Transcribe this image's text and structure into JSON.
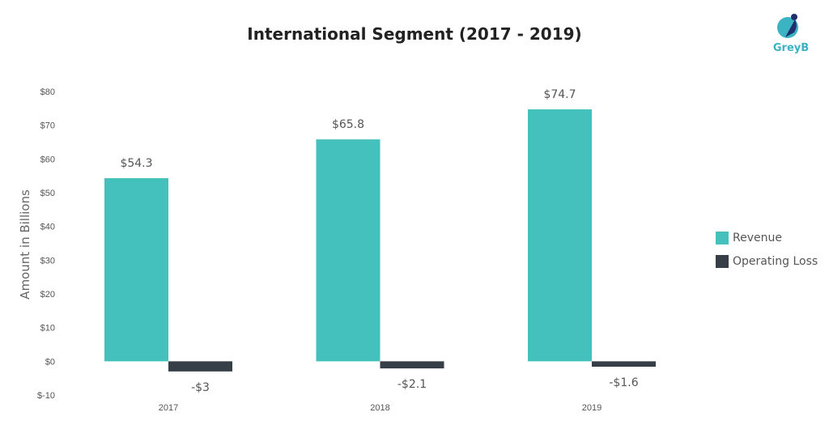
{
  "brand": {
    "name": "GreyB"
  },
  "chart_data": {
    "type": "bar",
    "title": "International Segment (2017 - 2019)",
    "xlabel": "",
    "ylabel": "Amount in Billions",
    "categories": [
      "2017",
      "2018",
      "2019"
    ],
    "ylim": [
      -10,
      80
    ],
    "yticks": [
      80,
      70,
      60,
      50,
      40,
      30,
      20,
      10,
      0,
      -10
    ],
    "ytick_labels": [
      "$80",
      "$70",
      "$60",
      "$50",
      "$40",
      "$30",
      "$20",
      "$10",
      "$0",
      "$-10"
    ],
    "grid": false,
    "legend_position": "right",
    "series": [
      {
        "name": "Revenue",
        "color": "#45c1bd",
        "values": [
          54.3,
          65.8,
          74.7
        ],
        "labels": [
          "$54.3",
          "$65.8",
          "$74.7"
        ]
      },
      {
        "name": "Operating Loss",
        "color": "#363f48",
        "values": [
          -3,
          -2.1,
          -1.6
        ],
        "labels": [
          "-$3",
          "-$2.1",
          "-$1.6"
        ]
      }
    ]
  }
}
